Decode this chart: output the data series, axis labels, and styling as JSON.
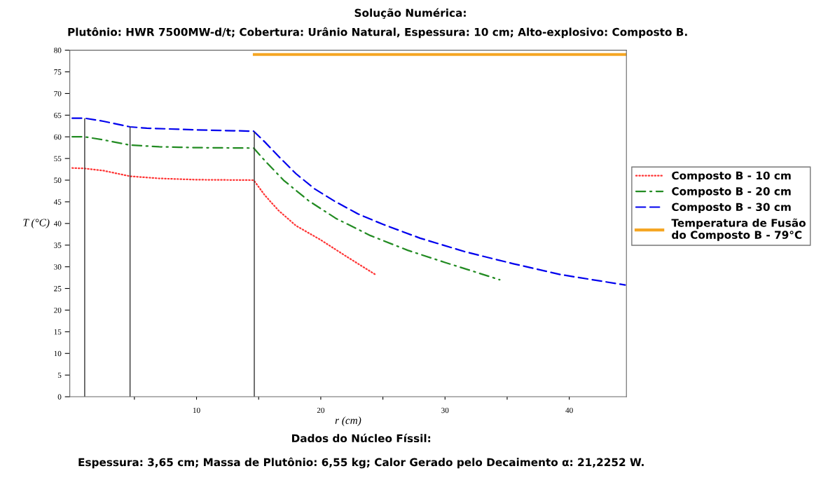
{
  "chart_data": {
    "type": "line",
    "title": "Solução Numérica:",
    "subtitle": "Plutônio: HWR 7500MW-d/t; Cobertura: Urânio Natural, Espessura: 10 cm; Alto-explosivo: Composto B.",
    "xlabel": "r (cm)",
    "ylabel": "T (°C)",
    "annotations": [
      "Dados do Núcleo Físsil:",
      "Espessura: 3,65 cm; Massa de Plutônio: 6,55 kg; Calor Gerado pelo Decaimento α: 21,2252 W."
    ],
    "xlim": [
      -0.2,
      44.6
    ],
    "ylim": [
      0,
      80
    ],
    "xticks": [
      {
        "value": 5,
        "label": null
      },
      10,
      {
        "value": 15,
        "label": null
      },
      20,
      {
        "value": 25,
        "label": null
      },
      30,
      {
        "value": 35,
        "label": null
      },
      40
    ],
    "yticks": [
      0,
      5,
      10,
      15,
      20,
      25,
      30,
      35,
      40,
      45,
      50,
      55,
      60,
      65,
      70,
      75,
      80
    ],
    "grid": false,
    "legend": "right",
    "marker": "none",
    "ref_lines": [
      {
        "axis": "x",
        "value": 1,
        "color": "#333333"
      },
      {
        "axis": "x",
        "value": 4.65,
        "color": "#333333"
      },
      {
        "axis": "x",
        "value": 14.65,
        "color": "#333333"
      }
    ],
    "series": [
      {
        "name": "Composto B - 10 cm",
        "color": "#ff3333",
        "line_style": "dotted",
        "x": [
          0,
          1,
          2.5,
          4.65,
          7,
          10,
          14.6,
          15.5,
          16.6,
          18,
          20,
          22,
          24.4
        ],
        "values": [
          52.8,
          52.7,
          52.2,
          50.9,
          50.4,
          50.1,
          50.0,
          46.5,
          43,
          39.5,
          36.2,
          32.5,
          28.2
        ]
      },
      {
        "name": "Composto B - 20 cm",
        "color": "#228b22",
        "line_style": "dashdot",
        "x": [
          0,
          1,
          2.5,
          4.65,
          7,
          10,
          14.6,
          15.5,
          17,
          19,
          21.2,
          24,
          27,
          30,
          32,
          34.4
        ],
        "values": [
          60,
          60,
          59.3,
          58.1,
          57.7,
          57.5,
          57.4,
          54.5,
          50,
          45.3,
          41.2,
          37.2,
          33.8,
          31.0,
          29.2,
          27.0
        ]
      },
      {
        "name": "Composto B - 30 cm",
        "color": "#0000ee",
        "line_style": "dashed",
        "x": [
          0,
          1,
          2.5,
          4.65,
          6,
          10,
          14.6,
          15.5,
          16.6,
          18,
          19.5,
          21.2,
          23,
          25,
          28,
          31.7,
          35.5,
          39.3,
          44.5
        ],
        "values": [
          64.3,
          64.3,
          63.6,
          62.3,
          62.0,
          61.6,
          61.3,
          58.8,
          55.5,
          51.5,
          48,
          45,
          42.2,
          39.8,
          36.6,
          33.4,
          30.7,
          28.2,
          25.8
        ]
      },
      {
        "name": "Temperatura de Fusão\ndo Composto B - 79°C",
        "color": "#f5a623",
        "line_style": "solid",
        "x": [
          14.65,
          44.6
        ],
        "values": [
          79,
          79
        ]
      }
    ]
  }
}
